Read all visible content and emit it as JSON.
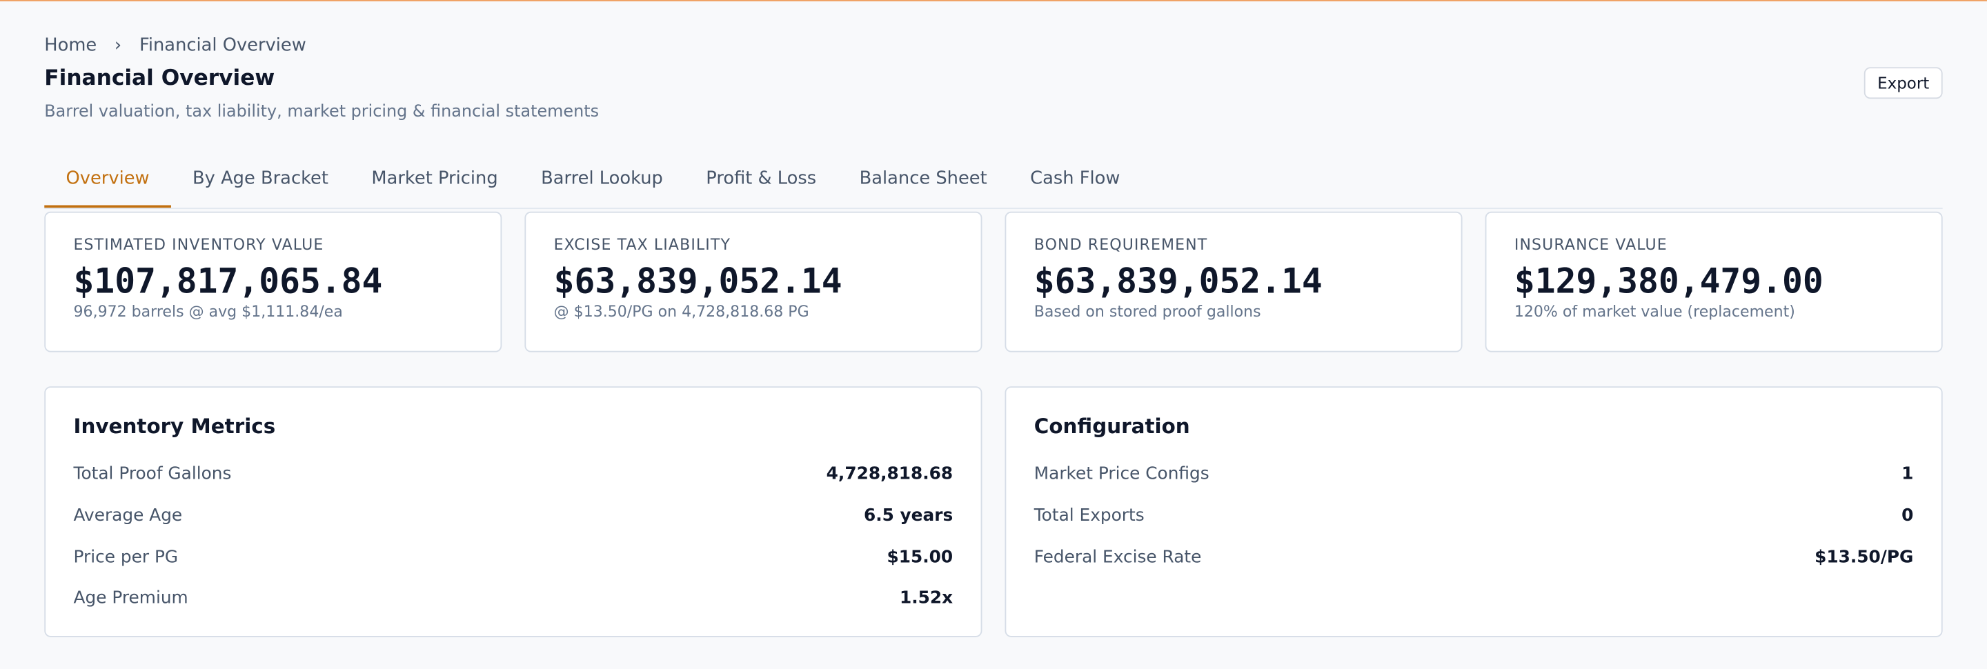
{
  "breadcrumb": [
    "Home",
    "›",
    "Financial Overview"
  ],
  "header": {
    "title": "Financial Overview",
    "subtitle": "Barrel valuation, tax liability, market pricing & financial statements",
    "button": "Export"
  },
  "tabs": [
    "Overview",
    "By Age Bracket",
    "Market Pricing",
    "Barrel Lookup",
    "Profit & Loss",
    "Balance Sheet",
    "Cash Flow"
  ],
  "kpis": [
    {
      "label": "ESTIMATED INVENTORY VALUE",
      "value": "$107,817,065.84",
      "note": "96,972 barrels @ avg $1,111.84/ea"
    },
    {
      "label": "EXCISE TAX LIABILITY",
      "value": "$63,839,052.14",
      "note": "@ $13.50/PG on 4,728,818.68 PG"
    },
    {
      "label": "BOND REQUIREMENT",
      "value": "$63,839,052.14",
      "note": "Based on stored proof gallons"
    },
    {
      "label": "INSURANCE VALUE",
      "value": "$129,380,479.00",
      "note": "120% of market value (replacement)"
    }
  ],
  "panels": [
    {
      "title": "Inventory Metrics",
      "rows": [
        [
          "Total Proof Gallons",
          "4,728,818.68"
        ],
        [
          "Average Age",
          "6.5 years"
        ],
        [
          "Price per PG",
          "$15.00"
        ],
        [
          "Age Premium",
          "1.52x"
        ]
      ]
    },
    {
      "title": "Configuration",
      "rows": [
        [
          "Market Price Configs",
          "1"
        ],
        [
          "Total Exports",
          "0"
        ],
        [
          "Federal Excise Rate",
          "$13.50/PG"
        ]
      ]
    }
  ]
}
